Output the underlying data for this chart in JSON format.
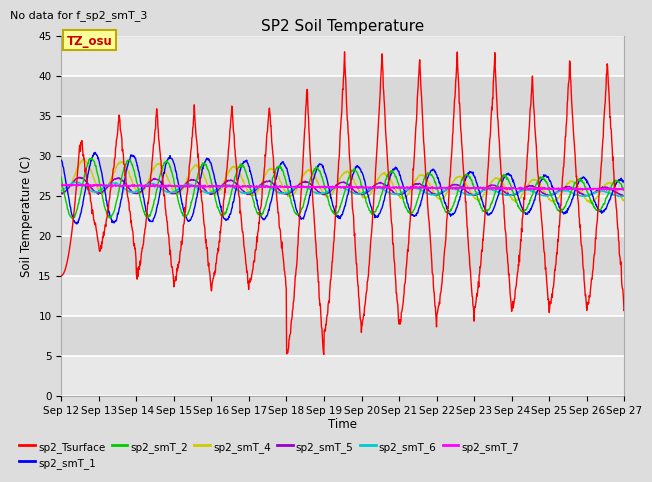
{
  "title": "SP2 Soil Temperature",
  "subtitle": "No data for f_sp2_smT_3",
  "xlabel": "Time",
  "ylabel": "Soil Temperature (C)",
  "tz_label": "TZ_osu",
  "ylim": [
    0,
    45
  ],
  "yticks": [
    0,
    5,
    10,
    15,
    20,
    25,
    30,
    35,
    40,
    45
  ],
  "x_labels": [
    "Sep 12",
    "Sep 13",
    "Sep 14",
    "Sep 15",
    "Sep 16",
    "Sep 17",
    "Sep 18",
    "Sep 19",
    "Sep 20",
    "Sep 21",
    "Sep 22",
    "Sep 23",
    "Sep 24",
    "Sep 25",
    "Sep 26",
    "Sep 27"
  ],
  "series": {
    "sp2_Tsurface": {
      "color": "#FF0000",
      "lw": 1.0
    },
    "sp2_smT_1": {
      "color": "#0000FF",
      "lw": 1.0
    },
    "sp2_smT_2": {
      "color": "#00CC00",
      "lw": 1.0
    },
    "sp2_smT_4": {
      "color": "#CCCC00",
      "lw": 1.0
    },
    "sp2_smT_5": {
      "color": "#9900CC",
      "lw": 1.0
    },
    "sp2_smT_6": {
      "color": "#00CCCC",
      "lw": 1.0
    },
    "sp2_smT_7": {
      "color": "#FF00FF",
      "lw": 1.2
    }
  },
  "bg_color": "#DDDDDD",
  "plot_bg": "#F0F0F0",
  "band_colors": [
    "#E8E8E8",
    "#D8D8D8"
  ],
  "grid_color": "#FFFFFF",
  "grid_lw": 1.2
}
